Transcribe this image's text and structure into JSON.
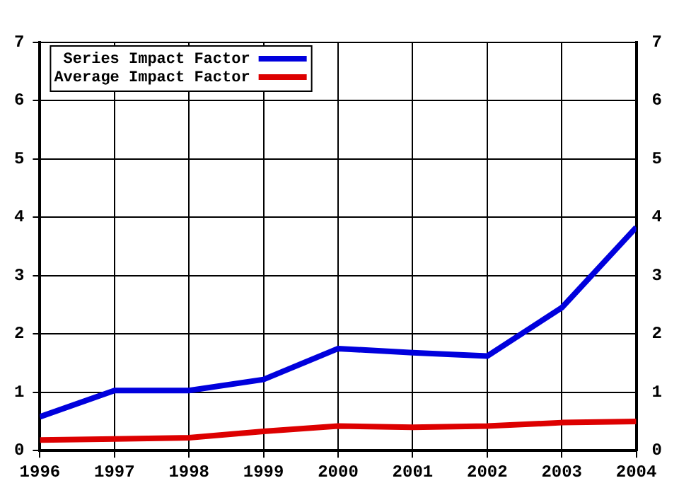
{
  "chart_data": {
    "type": "line",
    "x": [
      1996,
      1997,
      1998,
      1999,
      2000,
      2001,
      2002,
      2003,
      2004
    ],
    "series": [
      {
        "name": "Series Impact Factor",
        "color": "#0000dd",
        "values": [
          0.58,
          1.03,
          1.03,
          1.22,
          1.75,
          1.68,
          1.62,
          2.45,
          3.83
        ]
      },
      {
        "name": "Average Impact Factor",
        "color": "#dd0000",
        "values": [
          0.18,
          0.2,
          0.22,
          0.33,
          0.42,
          0.4,
          0.42,
          0.48,
          0.5
        ]
      }
    ],
    "xlim": [
      1996,
      2004
    ],
    "xticks": [
      1996,
      1997,
      1998,
      1999,
      2000,
      2001,
      2002,
      2003,
      2004
    ],
    "ylim": [
      0,
      7
    ],
    "yticks": [
      0,
      1,
      2,
      3,
      4,
      5,
      6,
      7
    ],
    "y2lim": [
      0,
      7
    ],
    "y2ticks": [
      0,
      1,
      2,
      3,
      4,
      5,
      6,
      7
    ],
    "grid": true,
    "legend": "top left",
    "marker": "none",
    "line_style": "solid"
  }
}
